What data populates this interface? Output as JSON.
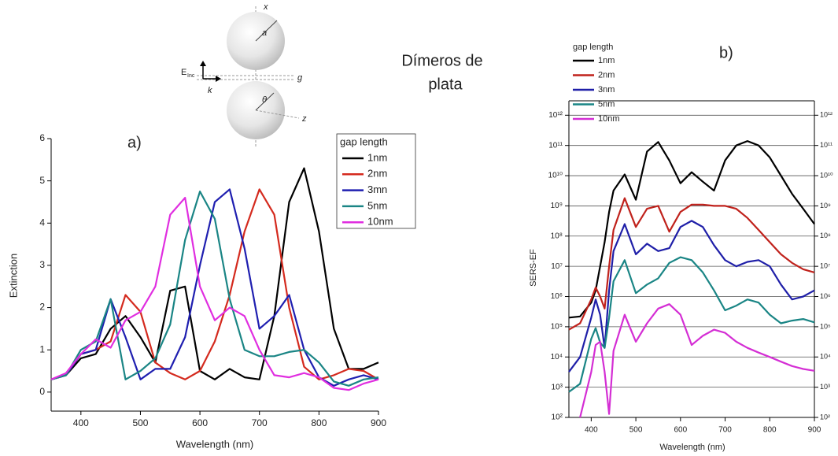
{
  "heading": [
    "Dímeros de",
    "plata"
  ],
  "diagram": {
    "labels": [
      "x",
      "a",
      "E",
      "Inc",
      "k",
      "g",
      "θ",
      "z"
    ]
  },
  "chart_data": [
    {
      "type": "line",
      "panel_label": "a)",
      "x_label": "Wavelength (nm)",
      "y_label": "Extinction",
      "legend_title": "gap length",
      "legend": "upper-right",
      "yscale": "linear",
      "grid": false,
      "xlim": [
        350,
        900
      ],
      "xticks": [
        400,
        500,
        600,
        700,
        800,
        900
      ],
      "ylim": [
        -0.45,
        6
      ],
      "yticks": [
        0,
        1,
        2,
        3,
        4,
        5,
        6
      ],
      "x": [
        350,
        375,
        400,
        425,
        450,
        475,
        500,
        525,
        550,
        575,
        600,
        625,
        650,
        675,
        700,
        725,
        750,
        775,
        800,
        825,
        850,
        875,
        900
      ],
      "series": [
        {
          "name": "1nm",
          "color": "#000000",
          "values": [
            0.3,
            0.4,
            0.8,
            0.9,
            1.5,
            1.8,
            1.3,
            0.7,
            2.4,
            2.5,
            0.5,
            0.3,
            0.55,
            0.35,
            0.3,
            1.8,
            4.5,
            5.3,
            3.8,
            1.5,
            0.55,
            0.55,
            0.7
          ]
        },
        {
          "name": "2nm",
          "color": "#d42a1e",
          "values": [
            0.3,
            0.4,
            0.9,
            1.0,
            1.2,
            2.3,
            1.9,
            0.7,
            0.45,
            0.3,
            0.5,
            1.2,
            2.3,
            3.8,
            4.8,
            4.2,
            2.0,
            0.6,
            0.3,
            0.4,
            0.55,
            0.5,
            0.3
          ]
        },
        {
          "name": "3mn",
          "color": "#1f1fb0",
          "values": [
            0.3,
            0.4,
            0.9,
            1.0,
            2.2,
            1.3,
            0.3,
            0.55,
            0.55,
            1.3,
            3.0,
            4.5,
            4.8,
            3.4,
            1.5,
            1.8,
            2.3,
            1.0,
            0.35,
            0.15,
            0.3,
            0.4,
            0.3
          ]
        },
        {
          "name": "5nm",
          "color": "#1a8585",
          "values": [
            0.3,
            0.4,
            1.0,
            1.2,
            2.2,
            0.3,
            0.5,
            0.8,
            1.6,
            3.6,
            4.75,
            4.1,
            2.2,
            1.0,
            0.85,
            0.85,
            0.95,
            1.0,
            0.7,
            0.25,
            0.15,
            0.3,
            0.35
          ]
        },
        {
          "name": "10nm",
          "color": "#e02ee0",
          "values": [
            0.3,
            0.45,
            0.9,
            1.25,
            1.05,
            1.7,
            1.9,
            2.5,
            4.2,
            4.6,
            2.5,
            1.7,
            2.0,
            1.8,
            1.0,
            0.4,
            0.35,
            0.45,
            0.35,
            0.1,
            0.05,
            0.2,
            0.3
          ]
        }
      ]
    },
    {
      "type": "line",
      "panel_label": "b)",
      "x_label": "Wavelength (nm)",
      "y_label": "SERS-EF",
      "legend_title": "gap length",
      "legend": "top-left",
      "yscale": "log",
      "grid": true,
      "xlim": [
        350,
        900
      ],
      "xticks": [
        400,
        500,
        600,
        700,
        800,
        900
      ],
      "ylim": [
        100,
        3000000000000.0
      ],
      "yticks": [
        {
          "value": 100,
          "label": "10²"
        },
        {
          "value": 1000,
          "label": "10³"
        },
        {
          "value": 10000.0,
          "label": "10⁴"
        },
        {
          "value": 100000.0,
          "label": "10⁵"
        },
        {
          "value": 1000000.0,
          "label": "10⁶"
        },
        {
          "value": 10000000.0,
          "label": "10⁷"
        },
        {
          "value": 100000000.0,
          "label": "10⁸"
        },
        {
          "value": 1000000000.0,
          "label": "10⁹"
        },
        {
          "value": 10000000000.0,
          "label": "10¹⁰"
        },
        {
          "value": 100000000000.0,
          "label": "10¹¹"
        },
        {
          "value": 1000000000000.0,
          "label": "10¹²"
        }
      ],
      "x": [
        350,
        375,
        400,
        410,
        420,
        430,
        440,
        450,
        475,
        500,
        525,
        550,
        575,
        600,
        625,
        650,
        675,
        700,
        725,
        750,
        775,
        800,
        825,
        850,
        875,
        900
      ],
      "series": [
        {
          "name": "1nm",
          "color": "#000000",
          "values": [
            200000.0,
            220000.0,
            630000.0,
            1600000.0,
            10000000.0,
            63000000.0,
            630000000.0,
            3200000000.0,
            11000000000.0,
            1600000000.0,
            63000000000.0,
            130000000000.0,
            32000000000.0,
            5600000000.0,
            13000000000.0,
            6300000000.0,
            3200000000.0,
            32000000000.0,
            100000000000.0,
            140000000000.0,
            100000000000.0,
            40000000000.0,
            10000000000.0,
            2500000000.0,
            800000000.0,
            250000000.0
          ]
        },
        {
          "name": "2nm",
          "color": "#c0221c",
          "values": [
            80000.0,
            130000.0,
            800000.0,
            2000000.0,
            1000000.0,
            400000.0,
            10000000.0,
            160000000.0,
            1800000000.0,
            200000000.0,
            800000000.0,
            1000000000.0,
            140000000.0,
            630000000.0,
            1100000000.0,
            1100000000.0,
            1000000000.0,
            1000000000.0,
            800000000.0,
            400000000.0,
            160000000.0,
            63000000.0,
            25000000.0,
            13000000.0,
            8000000.0,
            6300000.0
          ]
        },
        {
          "name": "3nm",
          "color": "#1f1fa8",
          "values": [
            3200.0,
            10000.0,
            200000.0,
            800000.0,
            250000.0,
            20000.0,
            1600000.0,
            32000000.0,
            250000000.0,
            25000000.0,
            56000000.0,
            32000000.0,
            40000000.0,
            200000000.0,
            320000000.0,
            200000000.0,
            50000000.0,
            16000000.0,
            10000000.0,
            14000000.0,
            16000000.0,
            10000000.0,
            2500000.0,
            800000.0,
            1000000.0,
            1600000.0
          ]
        },
        {
          "name": "5nm",
          "color": "#1a8585",
          "values": [
            700,
            1300,
            40000.0,
            90000.0,
            30000.0,
            20000.0,
            200000.0,
            3200000.0,
            16000000.0,
            1300000.0,
            2500000.0,
            4000000.0,
            13000000.0,
            20000000.0,
            16000000.0,
            6300000.0,
            1600000.0,
            350000.0,
            500000.0,
            800000.0,
            630000.0,
            250000.0,
            130000.0,
            160000.0,
            180000.0,
            140000.0
          ]
        },
        {
          "name": "10nm",
          "color": "#d42ed4",
          "values": [
            null,
            100,
            3200,
            25000.0,
            32000.0,
            3200,
            130,
            16000.0,
            250000.0,
            32000.0,
            130000.0,
            400000.0,
            560000.0,
            250000.0,
            25000.0,
            50000.0,
            80000.0,
            63000.0,
            32000.0,
            20000.0,
            14000.0,
            10000.0,
            7000,
            5000,
            4000,
            3500
          ]
        }
      ]
    }
  ]
}
